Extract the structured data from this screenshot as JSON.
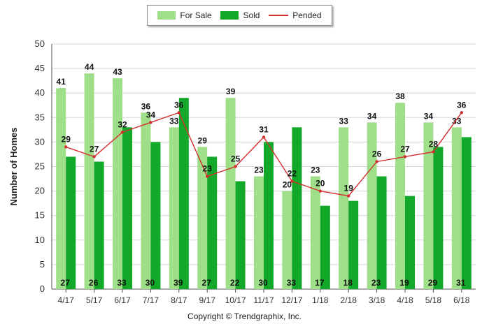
{
  "legend": {
    "for_sale": "For Sale",
    "sold": "Sold",
    "pended": "Pended"
  },
  "copyright": "Copyright © Trendgraphix, Inc.",
  "colors": {
    "for_sale": "#9fdf8a",
    "sold": "#12a82a",
    "pended": "#d32f2f",
    "grid": "#d6d6d6",
    "axis": "#555555"
  },
  "chart_data": {
    "type": "bar",
    "categories": [
      "4/17",
      "5/17",
      "6/17",
      "7/17",
      "8/17",
      "9/17",
      "10/17",
      "11/17",
      "12/17",
      "1/18",
      "2/18",
      "3/18",
      "4/18",
      "5/18",
      "6/18"
    ],
    "series": [
      {
        "name": "For Sale",
        "type": "bar",
        "values": [
          41,
          44,
          43,
          36,
          33,
          29,
          39,
          23,
          20,
          23,
          33,
          34,
          38,
          34,
          33
        ]
      },
      {
        "name": "Sold",
        "type": "bar",
        "values": [
          27,
          26,
          33,
          30,
          39,
          27,
          22,
          30,
          33,
          17,
          18,
          23,
          19,
          29,
          31
        ]
      },
      {
        "name": "Pended",
        "type": "line",
        "values": [
          29,
          27,
          32,
          34,
          36,
          23,
          25,
          31,
          22,
          20,
          19,
          26,
          27,
          28,
          36
        ]
      }
    ],
    "ylabel": "Number of Homes",
    "xlabel": "",
    "ylim": [
      0,
      50
    ],
    "yticks": [
      0,
      5,
      10,
      15,
      20,
      25,
      30,
      35,
      40,
      45,
      50
    ],
    "grid": true,
    "legend_position": "top"
  }
}
